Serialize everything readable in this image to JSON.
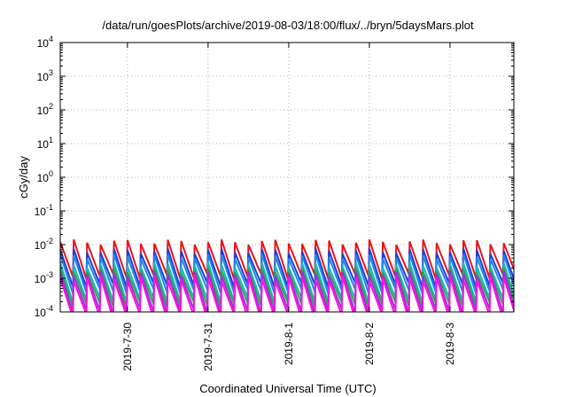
{
  "chart_data": {
    "type": "line",
    "title": "/data/run/goesPlots/archive/2019-08-03/18:00/flux/../bryn/5daysMars.plot",
    "xlabel": "Coordinated Universal Time (UTC)",
    "ylabel": "cGy/day",
    "yscale": "log",
    "ylim": [
      0.0001,
      10000
    ],
    "xlim": [
      "2019-07-29 04:00",
      "2019-08-03 19:00"
    ],
    "grid": true,
    "x_ticks": [
      "2019-7-30",
      "2019-7-31",
      "2019-8-1",
      "2019-8-2",
      "2019-8-3"
    ],
    "y_ticks": [
      {
        "base": "10",
        "exp": "-4"
      },
      {
        "base": "10",
        "exp": "-3"
      },
      {
        "base": "10",
        "exp": "-2"
      },
      {
        "base": "10",
        "exp": "-1"
      },
      {
        "base": "10",
        "exp": "0"
      },
      {
        "base": "10",
        "exp": "1"
      },
      {
        "base": "10",
        "exp": "2"
      },
      {
        "base": "10",
        "exp": "3"
      },
      {
        "base": "10",
        "exp": "4"
      }
    ],
    "sawtooth": {
      "period_hours": 4.05,
      "peak_times": [
        "2019-07-29 04:00",
        "2019-07-29 08:00",
        "2019-07-29 12:00",
        "2019-07-29 16:00",
        "2019-07-29 20:00",
        "2019-07-30 00:00",
        "2019-07-30 04:00",
        "2019-07-30 08:00",
        "2019-07-30 12:00",
        "2019-07-30 16:00",
        "2019-07-30 20:00",
        "2019-07-31 00:00",
        "2019-07-31 04:00",
        "2019-07-31 08:00",
        "2019-07-31 12:00",
        "2019-07-31 16:00",
        "2019-07-31 20:00",
        "2019-08-01 00:00",
        "2019-08-01 04:00",
        "2019-08-01 08:00",
        "2019-08-01 12:00",
        "2019-08-01 16:00",
        "2019-08-01 20:00",
        "2019-08-02 00:00",
        "2019-08-02 04:00",
        "2019-08-02 08:00",
        "2019-08-02 12:00",
        "2019-08-02 16:00",
        "2019-08-02 20:00",
        "2019-08-03 00:00",
        "2019-08-03 04:00",
        "2019-08-03 08:00",
        "2019-08-03 12:00",
        "2019-08-03 16:00"
      ]
    },
    "series": [
      {
        "color": "#e8141c",
        "peak": 0.012,
        "trough": 0.0011
      },
      {
        "color": "#1c3fd8",
        "peak": 0.0065,
        "trough": 0.0006
      },
      {
        "color": "#1e88e5",
        "peak": 0.0045,
        "trough": 0.0004
      },
      {
        "color": "#19b8c8",
        "peak": 0.0025,
        "trough": 0.00022
      },
      {
        "color": "#2ea84a",
        "peak": 0.0018,
        "trough": 0.00016
      },
      {
        "color": "#9b30d8",
        "peak": 0.0014,
        "trough": 0.0001
      },
      {
        "color": "#ff10e0",
        "peak": 0.001,
        "trough": 7e-05
      }
    ]
  }
}
